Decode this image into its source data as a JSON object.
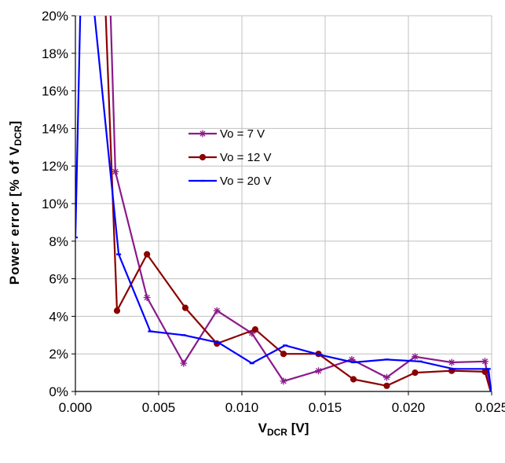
{
  "chart_data": {
    "type": "line",
    "title": "",
    "xlabel": "V",
    "xlabel_sub": "DCR",
    "xlabel_suffix": " [V]",
    "ylabel": "Power error [% of V",
    "ylabel_sub": "DCR",
    "ylabel_suffix": "]",
    "xlim": [
      0,
      0.025
    ],
    "ylim": [
      0,
      20
    ],
    "x_ticks": [
      0.0,
      0.005,
      0.01,
      0.015,
      0.02,
      0.025
    ],
    "x_tick_labels": [
      "0.000",
      "0.005",
      "0.010",
      "0.015",
      "0.020",
      "0.025"
    ],
    "y_ticks": [
      0,
      2,
      4,
      6,
      8,
      10,
      12,
      14,
      16,
      18,
      20
    ],
    "y_tick_labels": [
      "0%",
      "2%",
      "4%",
      "6%",
      "8%",
      "10%",
      "12%",
      "14%",
      "16%",
      "18%",
      "20%"
    ],
    "grid": true,
    "legend_position": "center",
    "series": [
      {
        "name": "Vo = 7 V",
        "color": "#8B1A8B",
        "marker": "asterisk",
        "x": [
          0.0021,
          0.0024,
          0.0043,
          0.0065,
          0.0085,
          0.0106,
          0.0125,
          0.0146,
          0.0166,
          0.0187,
          0.0204,
          0.0226,
          0.0246,
          0.025
        ],
        "y": [
          20.5,
          11.7,
          5.0,
          1.5,
          4.3,
          3.1,
          0.55,
          1.1,
          1.7,
          0.75,
          1.85,
          1.55,
          1.6,
          -0.2
        ]
      },
      {
        "name": "Vo = 12 V",
        "color": "#8B0000",
        "marker": "circle",
        "x": [
          0.0018,
          0.0025,
          0.0043,
          0.0066,
          0.0085,
          0.0108,
          0.0125,
          0.0146,
          0.0167,
          0.0187,
          0.0204,
          0.0226,
          0.0246,
          0.025
        ],
        "y": [
          20.5,
          4.3,
          7.3,
          4.45,
          2.55,
          3.3,
          2.0,
          2.0,
          0.65,
          0.3,
          1.0,
          1.1,
          1.05,
          -0.2
        ]
      },
      {
        "name": "Vo = 20 V",
        "color": "#0000FF",
        "marker": "dash",
        "x": [
          0.0,
          0.0003,
          0.0011,
          0.0026,
          0.0045,
          0.0065,
          0.0086,
          0.0106,
          0.0126,
          0.0147,
          0.0167,
          0.0187,
          0.0207,
          0.0227,
          0.0248,
          0.025
        ],
        "y": [
          8.2,
          20.5,
          20.5,
          7.3,
          3.2,
          3.0,
          2.6,
          1.5,
          2.45,
          1.95,
          1.55,
          1.7,
          1.6,
          1.2,
          1.2,
          -0.2
        ]
      }
    ]
  }
}
